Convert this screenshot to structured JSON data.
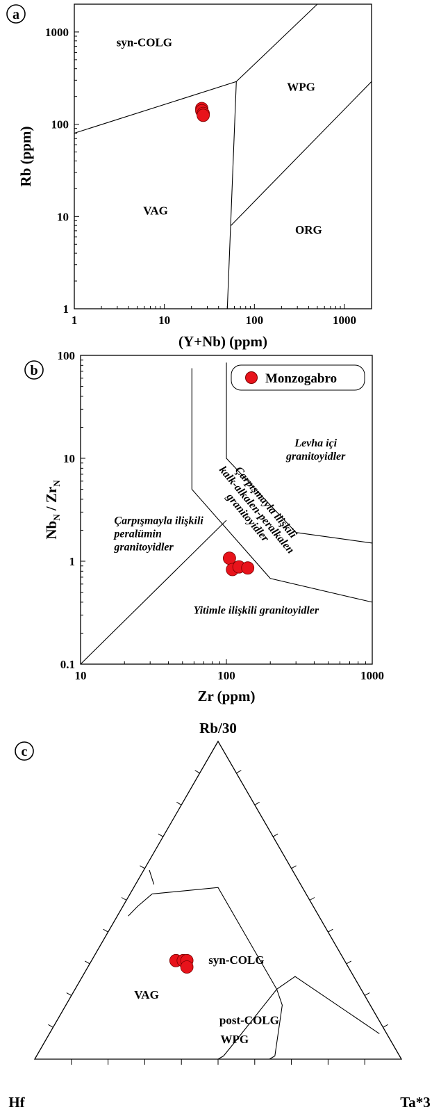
{
  "colors": {
    "point": "#e8131b",
    "point_edge": "#7a0000",
    "line": "#000000"
  },
  "chart_data": [
    {
      "panel": "a",
      "type": "scatter",
      "xlabel": "(Y+Nb) (ppm)",
      "ylabel": "Rb (ppm)",
      "xscale": "log",
      "yscale": "log",
      "xlim": [
        1,
        2000
      ],
      "ylim": [
        1,
        2000
      ],
      "x_ticks": [
        "1",
        "10",
        "100",
        "1000"
      ],
      "y_ticks": [
        "1",
        "10",
        "100",
        "1000"
      ],
      "fields": [
        {
          "name": "syn-COLG",
          "x": 6,
          "y": 700
        },
        {
          "name": "WPG",
          "x": 330,
          "y": 230
        },
        {
          "name": "VAG",
          "x": 8,
          "y": 10.5
        },
        {
          "name": "ORG",
          "x": 400,
          "y": 6.5
        }
      ],
      "boundaries": [
        [
          [
            1,
            80
          ],
          [
            63,
            290
          ],
          [
            500,
            2000
          ]
        ],
        [
          [
            63,
            290
          ],
          [
            50,
            1
          ]
        ],
        [
          [
            55,
            8
          ],
          [
            2000,
            290
          ]
        ]
      ],
      "series": [
        {
          "values": [
            [
              26,
              148
            ],
            [
              26,
              140
            ],
            [
              27,
              131
            ],
            [
              27,
              125
            ]
          ]
        }
      ]
    },
    {
      "panel": "b",
      "type": "scatter",
      "xlabel": "Zr (ppm)",
      "ylabel_main": "Nb",
      "ylabel_sub1": "N",
      "ylabel_mid": " / Zr",
      "ylabel_sub2": "N",
      "xscale": "log",
      "yscale": "log",
      "xlim": [
        10,
        1000
      ],
      "ylim": [
        0.1,
        100
      ],
      "x_ticks": [
        "10",
        "100",
        "1000"
      ],
      "y_ticks": [
        "0.1",
        "1",
        "10",
        "100"
      ],
      "legend": {
        "label": "Monzogabro",
        "placement": "top-right"
      },
      "fields": [
        {
          "lines": [
            "Levha içi",
            "granitoyidler"
          ],
          "x": 410,
          "y": 13,
          "italic": true
        },
        {
          "lines": [
            "Çarpışmayla ilişkili",
            "peralümin",
            "granitoyidler"
          ],
          "x": 17,
          "y": 2.3,
          "italic": true,
          "align": "start"
        },
        {
          "lines": [
            "Yitimle ilişkili granitoyidler"
          ],
          "x": 160,
          "y": 0.31,
          "italic": true
        },
        {
          "lines": [
            "Çarpışmayla ilişkili",
            "kalk-alkalen-peralkalen",
            "granitoyidler"
          ],
          "x": 155,
          "y": 3.0,
          "italic": true,
          "rotate": 50
        }
      ],
      "boundaries": [
        [
          [
            10,
            0.1
          ],
          [
            100,
            2.5
          ]
        ],
        [
          [
            58,
            75
          ],
          [
            58,
            5
          ],
          [
            200,
            0.68
          ],
          [
            1000,
            0.4
          ]
        ],
        [
          [
            100,
            85
          ],
          [
            100,
            10
          ],
          [
            300,
            1.9
          ],
          [
            1000,
            1.5
          ]
        ]
      ],
      "series": [
        {
          "name": "Monzogabro",
          "values": [
            [
              105,
              1.07
            ],
            [
              110,
              0.83
            ],
            [
              122,
              0.88
            ],
            [
              140,
              0.86
            ]
          ]
        }
      ]
    },
    {
      "panel": "c",
      "type": "ternary",
      "apex_top": "Rb/30",
      "apex_left": "Hf",
      "apex_right": "Ta*3",
      "fields": [
        {
          "name": "syn-COLG",
          "hf": 30,
          "ta": 40
        },
        {
          "name": "post-COLG",
          "hf": 36,
          "ta": 53
        },
        {
          "name": "VAG",
          "hf": 60,
          "ta": 21
        },
        {
          "name": "WPG",
          "hf": 43,
          "ta": 52
        }
      ],
      "boundaries": [
        [
          [
            42,
            6
          ],
          [
            23,
            23
          ],
          [
            23,
            55
          ],
          [
            16,
            58
          ],
          [
            2,
            90
          ]
        ],
        [
          [
            23,
            55
          ],
          [
            42,
            52
          ],
          [
            48,
            51
          ],
          [
            50,
            50
          ]
        ],
        [
          [
            23,
            55
          ],
          [
            24,
            59
          ],
          [
            34,
            65
          ],
          [
            36,
            64
          ]
        ],
        [
          [
            42,
            6
          ],
          [
            48,
            4
          ],
          [
            52,
            3
          ]
        ],
        [
          [
            40,
            5
          ],
          [
            39,
            1.5
          ]
        ]
      ],
      "series": [
        {
          "values": [
            [
              46,
              23
            ],
            [
              44,
              25
            ],
            [
              43,
              26
            ],
            [
              44,
              27
            ]
          ]
        }
      ]
    }
  ]
}
